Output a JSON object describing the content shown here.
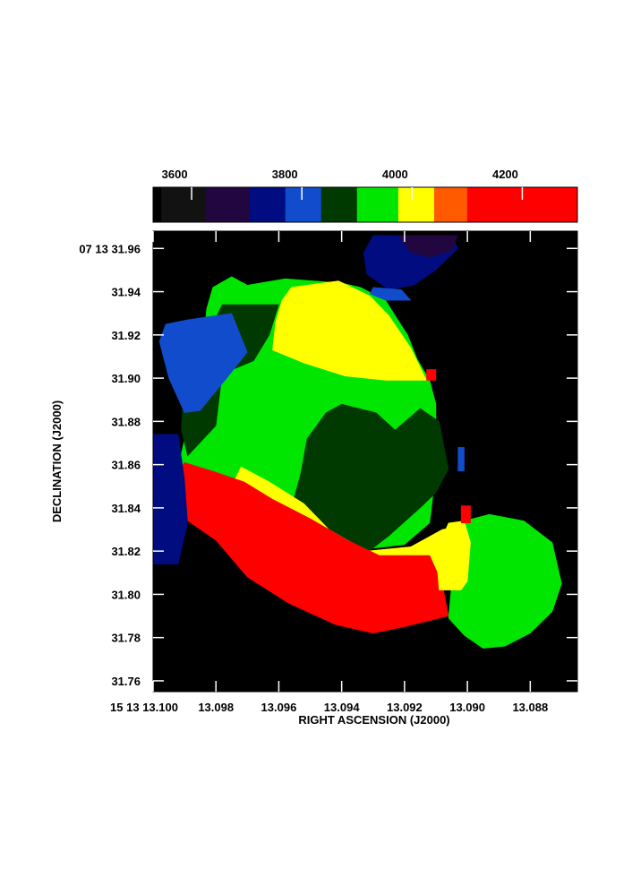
{
  "chart_data": {
    "type": "heatmap",
    "title": "",
    "xlabel": "RIGHT ASCENSION (J2000)",
    "ylabel": "DECLINATION (J2000)",
    "xlim": [
      13.1,
      13.0865
    ],
    "ylim": [
      31.755,
      31.968
    ],
    "x_ticks": [
      {
        "value": 13.1,
        "label": "15 13 13.100"
      },
      {
        "value": 13.098,
        "label": "13.098"
      },
      {
        "value": 13.096,
        "label": "13.096"
      },
      {
        "value": 13.094,
        "label": "13.094"
      },
      {
        "value": 13.092,
        "label": "13.092"
      },
      {
        "value": 13.09,
        "label": "13.090"
      },
      {
        "value": 13.088,
        "label": "13.088"
      }
    ],
    "y_ticks": [
      {
        "value": 31.96,
        "label": "07 13 31.96"
      },
      {
        "value": 31.94,
        "label": "31.94"
      },
      {
        "value": 31.92,
        "label": "31.92"
      },
      {
        "value": 31.9,
        "label": "31.90"
      },
      {
        "value": 31.88,
        "label": "31.88"
      },
      {
        "value": 31.86,
        "label": "31.86"
      },
      {
        "value": 31.84,
        "label": "31.84"
      },
      {
        "value": 31.82,
        "label": "31.82"
      },
      {
        "value": 31.8,
        "label": "31.80"
      },
      {
        "value": 31.78,
        "label": "31.78"
      },
      {
        "value": 31.76,
        "label": "31.76"
      }
    ],
    "colorbar": {
      "range": [
        3530,
        4300
      ],
      "ticks": [
        {
          "value": 3600,
          "label": "3600"
        },
        {
          "value": 3800,
          "label": "3800"
        },
        {
          "value": 4000,
          "label": "4000"
        },
        {
          "value": 4200,
          "label": "4200"
        }
      ],
      "levels": [
        {
          "from": 3530,
          "to": 3545,
          "color": "#000000"
        },
        {
          "from": 3545,
          "to": 3625,
          "color": "#121212"
        },
        {
          "from": 3625,
          "to": 3705,
          "color": "#22063f"
        },
        {
          "from": 3705,
          "to": 3770,
          "color": "#000c80"
        },
        {
          "from": 3770,
          "to": 3835,
          "color": "#114ccc"
        },
        {
          "from": 3835,
          "to": 3900,
          "color": "#003a00"
        },
        {
          "from": 3900,
          "to": 3975,
          "color": "#00e600"
        },
        {
          "from": 3975,
          "to": 4040,
          "color": "#ffff00"
        },
        {
          "from": 4040,
          "to": 4100,
          "color": "#ff5a00"
        },
        {
          "from": 4100,
          "to": 4300,
          "color": "#ff0000"
        }
      ]
    },
    "regions": [
      {
        "level_color": "#00e600",
        "points": [
          [
            13.097,
            31.943
          ],
          [
            13.0958,
            31.946
          ],
          [
            13.094,
            31.944
          ],
          [
            13.0934,
            31.942
          ],
          [
            13.0926,
            31.936
          ],
          [
            13.0923,
            31.929
          ],
          [
            13.0919,
            31.92
          ],
          [
            13.0916,
            31.909
          ],
          [
            13.0912,
            31.899
          ],
          [
            13.091,
            31.888
          ],
          [
            13.091,
            31.872
          ],
          [
            13.0912,
            31.86
          ],
          [
            13.0911,
            31.845
          ],
          [
            13.0912,
            31.833
          ],
          [
            13.092,
            31.823
          ],
          [
            13.095,
            31.818
          ],
          [
            13.0972,
            31.829
          ],
          [
            13.098,
            31.843
          ],
          [
            13.0992,
            31.859
          ],
          [
            13.0989,
            31.878
          ],
          [
            13.0986,
            31.899
          ],
          [
            13.0984,
            31.916
          ],
          [
            13.0983,
            31.932
          ],
          [
            13.0981,
            31.942
          ],
          [
            13.0975,
            31.947
          ]
        ]
      },
      {
        "level_color": "#003a00",
        "points": [
          [
            13.0978,
            31.934
          ],
          [
            13.096,
            31.934
          ],
          [
            13.0963,
            31.92
          ],
          [
            13.0968,
            31.908
          ],
          [
            13.0978,
            31.902
          ],
          [
            13.098,
            31.878
          ],
          [
            13.0989,
            31.864
          ],
          [
            13.0991,
            31.876
          ],
          [
            13.099,
            31.906
          ],
          [
            13.0982,
            31.922
          ]
        ]
      },
      {
        "level_color": "#114ccc",
        "points": [
          [
            13.0989,
            31.927
          ],
          [
            13.0975,
            31.93
          ],
          [
            13.097,
            31.912
          ],
          [
            13.0976,
            31.901
          ],
          [
            13.0985,
            31.885
          ],
          [
            13.099,
            31.884
          ],
          [
            13.0995,
            31.9
          ],
          [
            13.0998,
            31.917
          ],
          [
            13.0996,
            31.925
          ]
        ]
      },
      {
        "level_color": "#ffff00",
        "points": [
          [
            13.0956,
            31.942
          ],
          [
            13.0941,
            31.945
          ],
          [
            13.0931,
            31.938
          ],
          [
            13.0925,
            31.929
          ],
          [
            13.0918,
            31.914
          ],
          [
            13.0913,
            31.899
          ],
          [
            13.0926,
            31.899
          ],
          [
            13.0939,
            31.901
          ],
          [
            13.0952,
            31.907
          ],
          [
            13.0962,
            31.913
          ],
          [
            13.0961,
            31.926
          ],
          [
            13.0959,
            31.936
          ]
        ]
      },
      {
        "level_color": "#003a00",
        "points": [
          [
            13.094,
            31.888
          ],
          [
            13.0929,
            31.884
          ],
          [
            13.0923,
            31.876
          ],
          [
            13.0915,
            31.886
          ],
          [
            13.0909,
            31.88
          ],
          [
            13.0906,
            31.858
          ],
          [
            13.091,
            31.847
          ],
          [
            13.0915,
            31.84
          ],
          [
            13.0925,
            31.827
          ],
          [
            13.0933,
            31.818
          ],
          [
            13.0942,
            31.821
          ],
          [
            13.0951,
            31.83
          ],
          [
            13.0956,
            31.84
          ],
          [
            13.0953,
            31.856
          ],
          [
            13.0951,
            31.872
          ],
          [
            13.0945,
            31.884
          ]
        ]
      },
      {
        "level_color": "#ffff00",
        "points": [
          [
            13.0972,
            31.859
          ],
          [
            13.0963,
            31.852
          ],
          [
            13.0952,
            31.842
          ],
          [
            13.0944,
            31.83
          ],
          [
            13.0932,
            31.82
          ],
          [
            13.0918,
            31.822
          ],
          [
            13.0908,
            31.83
          ],
          [
            13.0904,
            31.831
          ],
          [
            13.0903,
            31.816
          ],
          [
            13.0908,
            31.809
          ],
          [
            13.0925,
            31.806
          ],
          [
            13.0945,
            31.812
          ],
          [
            13.0958,
            31.822
          ],
          [
            13.097,
            31.834
          ],
          [
            13.0976,
            31.847
          ]
        ]
      },
      {
        "level_color": "#ff0000",
        "points": [
          [
            13.0981,
            31.857
          ],
          [
            13.0971,
            31.852
          ],
          [
            13.0962,
            31.844
          ],
          [
            13.095,
            31.835
          ],
          [
            13.0938,
            31.825
          ],
          [
            13.0928,
            31.818
          ],
          [
            13.0912,
            31.818
          ],
          [
            13.0908,
            31.805
          ],
          [
            13.0906,
            31.79
          ],
          [
            13.092,
            31.785
          ],
          [
            13.093,
            31.782
          ],
          [
            13.0942,
            31.786
          ],
          [
            13.0957,
            31.796
          ],
          [
            13.097,
            31.808
          ],
          [
            13.098,
            31.825
          ],
          [
            13.0992,
            31.837
          ],
          [
            13.0995,
            31.85
          ],
          [
            13.099,
            31.861
          ]
        ]
      },
      {
        "level_color": "#ff5a00",
        "points": [
          [
            13.0908,
            31.824
          ],
          [
            13.0903,
            31.825
          ],
          [
            13.0902,
            31.814
          ],
          [
            13.0906,
            31.813
          ]
        ]
      },
      {
        "level_color": "#00e600",
        "points": [
          [
            13.0901,
            31.834
          ],
          [
            13.0893,
            31.837
          ],
          [
            13.0882,
            31.834
          ],
          [
            13.0873,
            31.824
          ],
          [
            13.087,
            31.805
          ],
          [
            13.0873,
            31.792
          ],
          [
            13.088,
            31.782
          ],
          [
            13.0888,
            31.776
          ],
          [
            13.0895,
            31.775
          ],
          [
            13.0901,
            31.781
          ],
          [
            13.0906,
            31.789
          ],
          [
            13.0905,
            31.805
          ],
          [
            13.0902,
            31.82
          ]
        ]
      },
      {
        "level_color": "#ffff00",
        "points": [
          [
            13.0906,
            31.833
          ],
          [
            13.0901,
            31.834
          ],
          [
            13.0899,
            31.824
          ],
          [
            13.09,
            31.806
          ],
          [
            13.0902,
            31.802
          ],
          [
            13.0909,
            31.802
          ],
          [
            13.091,
            31.82
          ]
        ]
      },
      {
        "level_color": "#ff0000",
        "points": [
          [
            13.0902,
            31.841
          ],
          [
            13.0899,
            31.841
          ],
          [
            13.0899,
            31.833
          ],
          [
            13.0902,
            31.833
          ]
        ]
      },
      {
        "level_color": "#000c80",
        "points": [
          [
            13.093,
            31.966
          ],
          [
            13.0905,
            31.966
          ],
          [
            13.0903,
            31.96
          ],
          [
            13.091,
            31.95
          ],
          [
            13.0917,
            31.943
          ],
          [
            13.0925,
            31.941
          ],
          [
            13.0932,
            31.948
          ],
          [
            13.0933,
            31.958
          ]
        ]
      },
      {
        "level_color": "#22063f",
        "points": [
          [
            13.0922,
            31.966
          ],
          [
            13.0903,
            31.966
          ],
          [
            13.0905,
            31.959
          ],
          [
            13.0912,
            31.956
          ],
          [
            13.0918,
            31.958
          ]
        ]
      },
      {
        "level_color": "#114ccc",
        "points": [
          [
            13.093,
            31.942
          ],
          [
            13.0921,
            31.941
          ],
          [
            13.0918,
            31.936
          ],
          [
            13.0926,
            31.936
          ],
          [
            13.0931,
            31.939
          ]
        ]
      },
      {
        "level_color": "#000c80",
        "points": [
          [
            13.1,
            31.874
          ],
          [
            13.0992,
            31.874
          ],
          [
            13.099,
            31.853
          ],
          [
            13.0989,
            31.833
          ],
          [
            13.0992,
            31.814
          ],
          [
            13.1,
            31.814
          ]
        ]
      },
      {
        "level_color": "#114ccc",
        "points": [
          [
            13.0903,
            31.868
          ],
          [
            13.0901,
            31.868
          ],
          [
            13.0901,
            31.857
          ],
          [
            13.0903,
            31.857
          ]
        ]
      },
      {
        "level_color": "#ff0000",
        "points": [
          [
            13.0913,
            31.904
          ],
          [
            13.091,
            31.904
          ],
          [
            13.091,
            31.899
          ],
          [
            13.0913,
            31.899
          ]
        ]
      }
    ]
  }
}
